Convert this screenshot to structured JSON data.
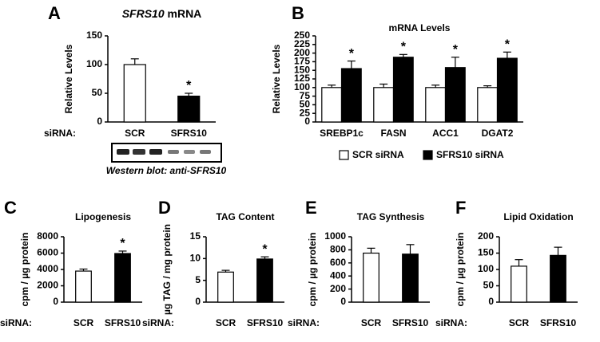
{
  "chart_data": [
    {
      "type": "bar",
      "panel": "A",
      "title_italic": "SFRS10",
      "title": "mRNA",
      "ylabel": "Relative Levels",
      "xlabel": "siRNA:",
      "categories": [
        "SCR",
        "SFRS10"
      ],
      "ylim": [
        0,
        150
      ],
      "yticks": [
        0,
        50,
        100,
        150
      ],
      "series": [
        {
          "colors": [
            "#ffffff",
            "#000000"
          ],
          "values": [
            100,
            45
          ],
          "errors": [
            10,
            5
          ]
        }
      ],
      "significance": [
        null,
        "*"
      ],
      "blot_caption": "Western blot: anti-SFRS10"
    },
    {
      "type": "bar",
      "panel": "B",
      "title": "mRNA Levels",
      "ylabel": "Relative Levels",
      "categories": [
        "SREBP1c",
        "FASN",
        "ACC1",
        "DGAT2"
      ],
      "ylim": [
        0,
        250
      ],
      "yticks": [
        0,
        25,
        50,
        75,
        100,
        125,
        150,
        175,
        200,
        225,
        250
      ],
      "series": [
        {
          "name": "SCR siRNA",
          "color": "#ffffff",
          "values": [
            100,
            100,
            100,
            100
          ],
          "errors": [
            7,
            10,
            7,
            5
          ]
        },
        {
          "name": "SFRS10 siRNA",
          "color": "#000000",
          "values": [
            155,
            188,
            158,
            185
          ],
          "errors": [
            22,
            8,
            30,
            18
          ]
        }
      ],
      "significance": [
        "*",
        "*",
        "*",
        "*"
      ]
    },
    {
      "type": "bar",
      "panel": "C",
      "title": "Lipogenesis",
      "ylabel": "cpm / µg protein",
      "xlabel": "siRNA:",
      "categories": [
        "SCR",
        "SFRS10"
      ],
      "ylim": [
        0,
        8000
      ],
      "yticks": [
        0,
        2000,
        4000,
        6000,
        8000
      ],
      "series": [
        {
          "colors": [
            "#ffffff",
            "#000000"
          ],
          "values": [
            3800,
            5950
          ],
          "errors": [
            250,
            300
          ]
        }
      ],
      "significance": [
        null,
        "*"
      ]
    },
    {
      "type": "bar",
      "panel": "D",
      "title": "TAG Content",
      "ylabel": "µg TAG / mg protein",
      "xlabel": "siRNA:",
      "categories": [
        "SCR",
        "SFRS10"
      ],
      "ylim": [
        0,
        15
      ],
      "yticks": [
        0,
        5,
        10,
        15
      ],
      "series": [
        {
          "colors": [
            "#ffffff",
            "#000000"
          ],
          "values": [
            6.9,
            9.9
          ],
          "errors": [
            0.4,
            0.5
          ]
        }
      ],
      "significance": [
        null,
        "*"
      ]
    },
    {
      "type": "bar",
      "panel": "E",
      "title": "TAG Synthesis",
      "ylabel": "cpm / µg protein",
      "xlabel": "siRNA:",
      "categories": [
        "SCR",
        "SFRS10"
      ],
      "ylim": [
        0,
        1000
      ],
      "yticks": [
        0,
        200,
        400,
        600,
        800,
        1000
      ],
      "series": [
        {
          "colors": [
            "#ffffff",
            "#000000"
          ],
          "values": [
            750,
            735
          ],
          "errors": [
            75,
            145
          ]
        }
      ],
      "significance": [
        null,
        null
      ]
    },
    {
      "type": "bar",
      "panel": "F",
      "title": "Lipid Oxidation",
      "ylabel": "cpm / µg protein",
      "xlabel": "siRNA:",
      "categories": [
        "SCR",
        "SFRS10"
      ],
      "ylim": [
        0,
        200
      ],
      "yticks": [
        0,
        50,
        100,
        150,
        200
      ],
      "series": [
        {
          "colors": [
            "#ffffff",
            "#000000"
          ],
          "values": [
            110,
            143
          ],
          "errors": [
            20,
            25
          ]
        }
      ],
      "significance": [
        null,
        null
      ]
    }
  ]
}
